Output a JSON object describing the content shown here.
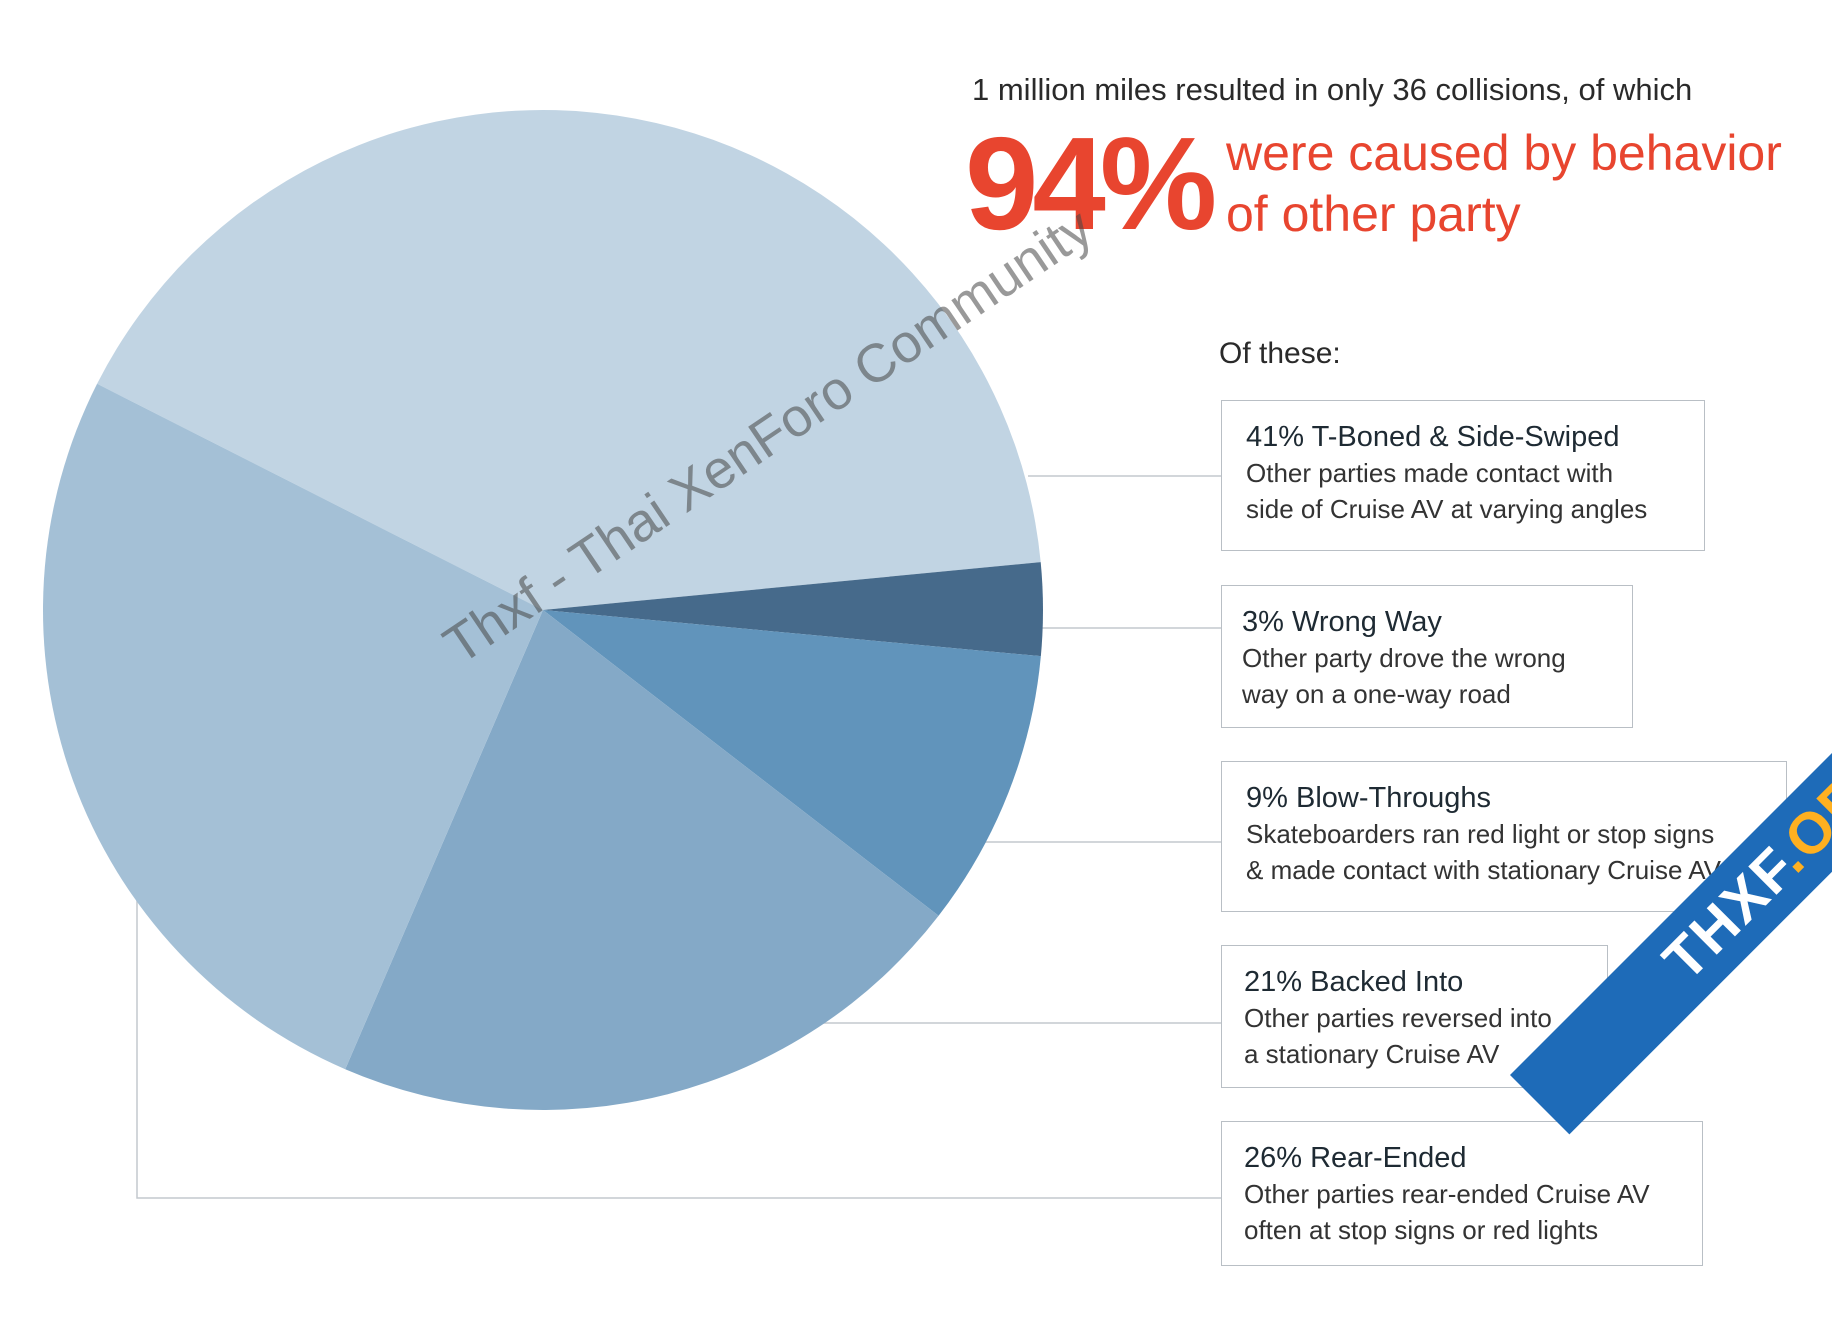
{
  "headline": {
    "intro": "1 million miles resulted in only 36 collisions, of which",
    "big_percent": "94%",
    "rest_line1": "were caused by behavior",
    "rest_line2": "of other party"
  },
  "of_these_label": "Of these:",
  "chart_data": {
    "type": "pie",
    "slices": [
      {
        "label": "T-Boned & Side-Swiped",
        "percent": 41,
        "color": "#c1d4e3"
      },
      {
        "label": "Wrong Way",
        "percent": 3,
        "color": "#466a8b"
      },
      {
        "label": "Blow-Throughs",
        "percent": 9,
        "color": "#6194bb"
      },
      {
        "label": "Backed Into",
        "percent": 21,
        "color": "#84a9c7"
      },
      {
        "label": "Rear-Ended",
        "percent": 26,
        "color": "#a4c0d6"
      }
    ]
  },
  "callouts": [
    {
      "title": "41% T-Boned & Side-Swiped",
      "line1": "Other parties made contact with",
      "line2": "side of Cruise AV at varying angles"
    },
    {
      "title": "3% Wrong Way",
      "line1": "Other party drove the wrong",
      "line2": "way on a one-way road"
    },
    {
      "title": "9% Blow-Throughs",
      "line1": "Skateboarders ran red light or stop signs",
      "line2": "& made contact with stationary Cruise AV"
    },
    {
      "title": "21% Backed Into",
      "line1": "Other parties reversed into",
      "line2": "a stationary Cruise AV"
    },
    {
      "title": "26% Rear-Ended",
      "line1": "Other parties rear-ended Cruise AV",
      "line2": "often at stop signs or red lights"
    }
  ],
  "watermark": "Thxf - Thai XenForo Community",
  "corner_logo": {
    "part1": "THXF",
    "part2": ".ORG"
  }
}
